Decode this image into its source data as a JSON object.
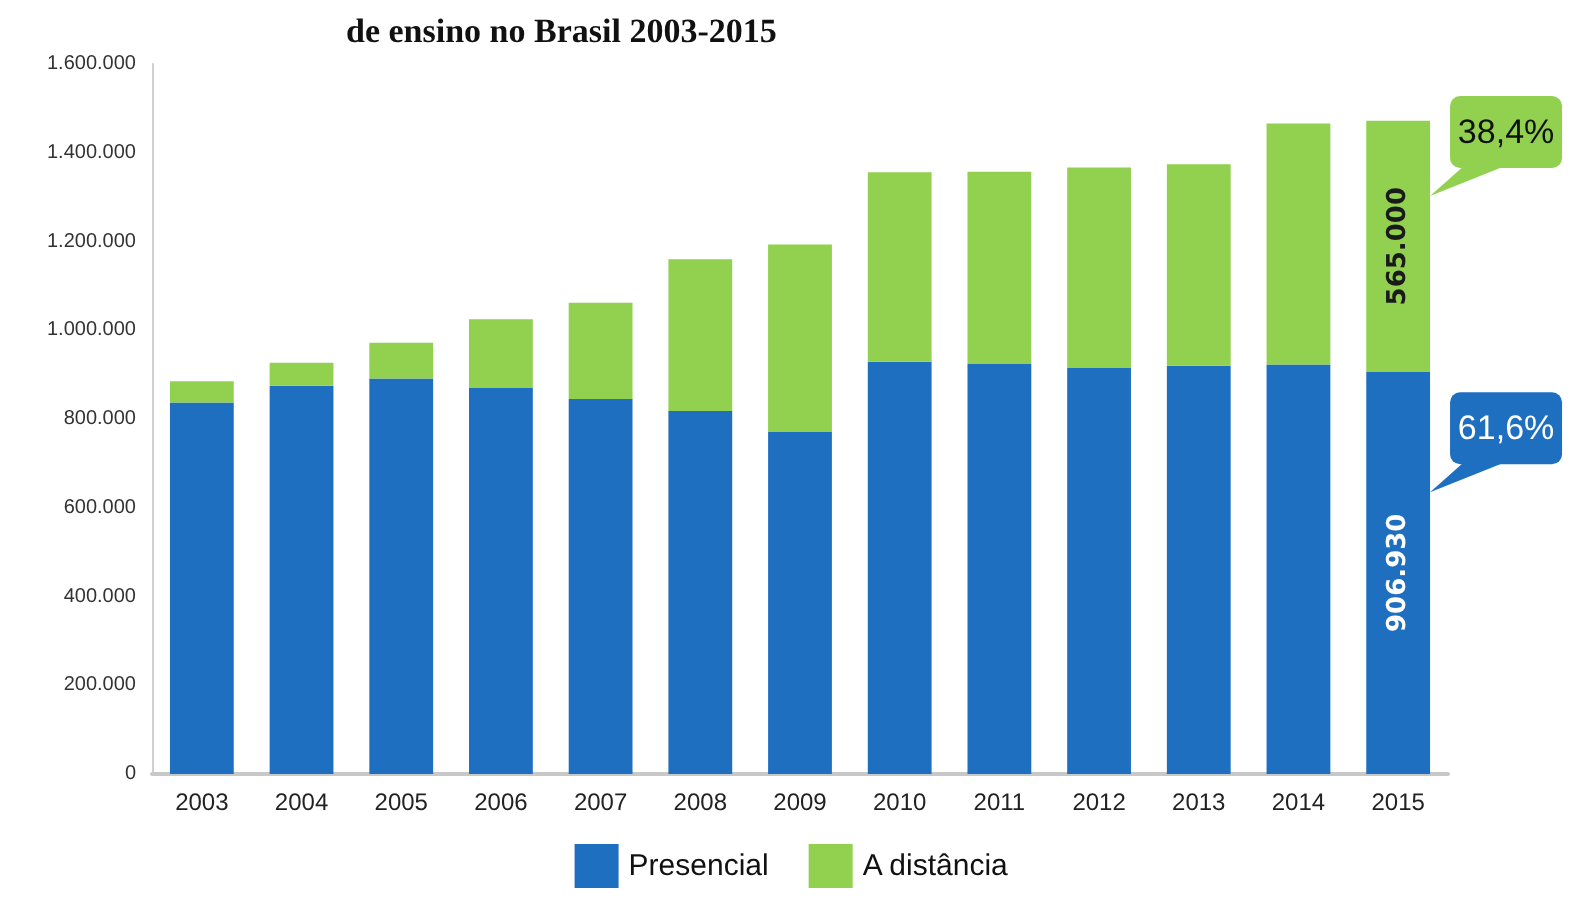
{
  "chart_data": {
    "type": "bar",
    "title": "de ensino no Brasil 2003-2015",
    "stacked": true,
    "categories": [
      "2003",
      "2004",
      "2005",
      "2006",
      "2007",
      "2008",
      "2009",
      "2010",
      "2011",
      "2012",
      "2013",
      "2014",
      "2015"
    ],
    "series": [
      {
        "name": "Presencial",
        "color": "#1f6fc0",
        "values": [
          837000,
          875000,
          891000,
          871000,
          845000,
          818000,
          772000,
          929000,
          924000,
          916000,
          920000,
          923000,
          906930
        ],
        "value_labels": [
          null,
          null,
          null,
          null,
          null,
          null,
          null,
          null,
          null,
          null,
          null,
          null,
          "906.930"
        ]
      },
      {
        "name": "A distância",
        "color": "#92d050",
        "values": [
          48000,
          52000,
          81000,
          154000,
          217000,
          342000,
          421000,
          427000,
          433000,
          451000,
          454000,
          543000,
          565000
        ],
        "value_labels": [
          null,
          null,
          null,
          null,
          null,
          null,
          null,
          null,
          null,
          null,
          null,
          null,
          "565.000"
        ]
      }
    ],
    "ylim": [
      0,
      1600000
    ],
    "yticks": [
      {
        "value": 0,
        "label": "0"
      },
      {
        "value": 200000,
        "label": "200.000"
      },
      {
        "value": 400000,
        "label": "400.000"
      },
      {
        "value": 600000,
        "label": "600.000"
      },
      {
        "value": 800000,
        "label": "800.000"
      },
      {
        "value": 1000000,
        "label": "1.000.000"
      },
      {
        "value": 1200000,
        "label": "1.200.000"
      },
      {
        "value": 1400000,
        "label": "1.400.000"
      },
      {
        "value": 1600000,
        "label": "1.600.000"
      }
    ],
    "annotations": [
      "61,6%",
      "38,4%"
    ],
    "grid": false,
    "legend": "bottom"
  }
}
